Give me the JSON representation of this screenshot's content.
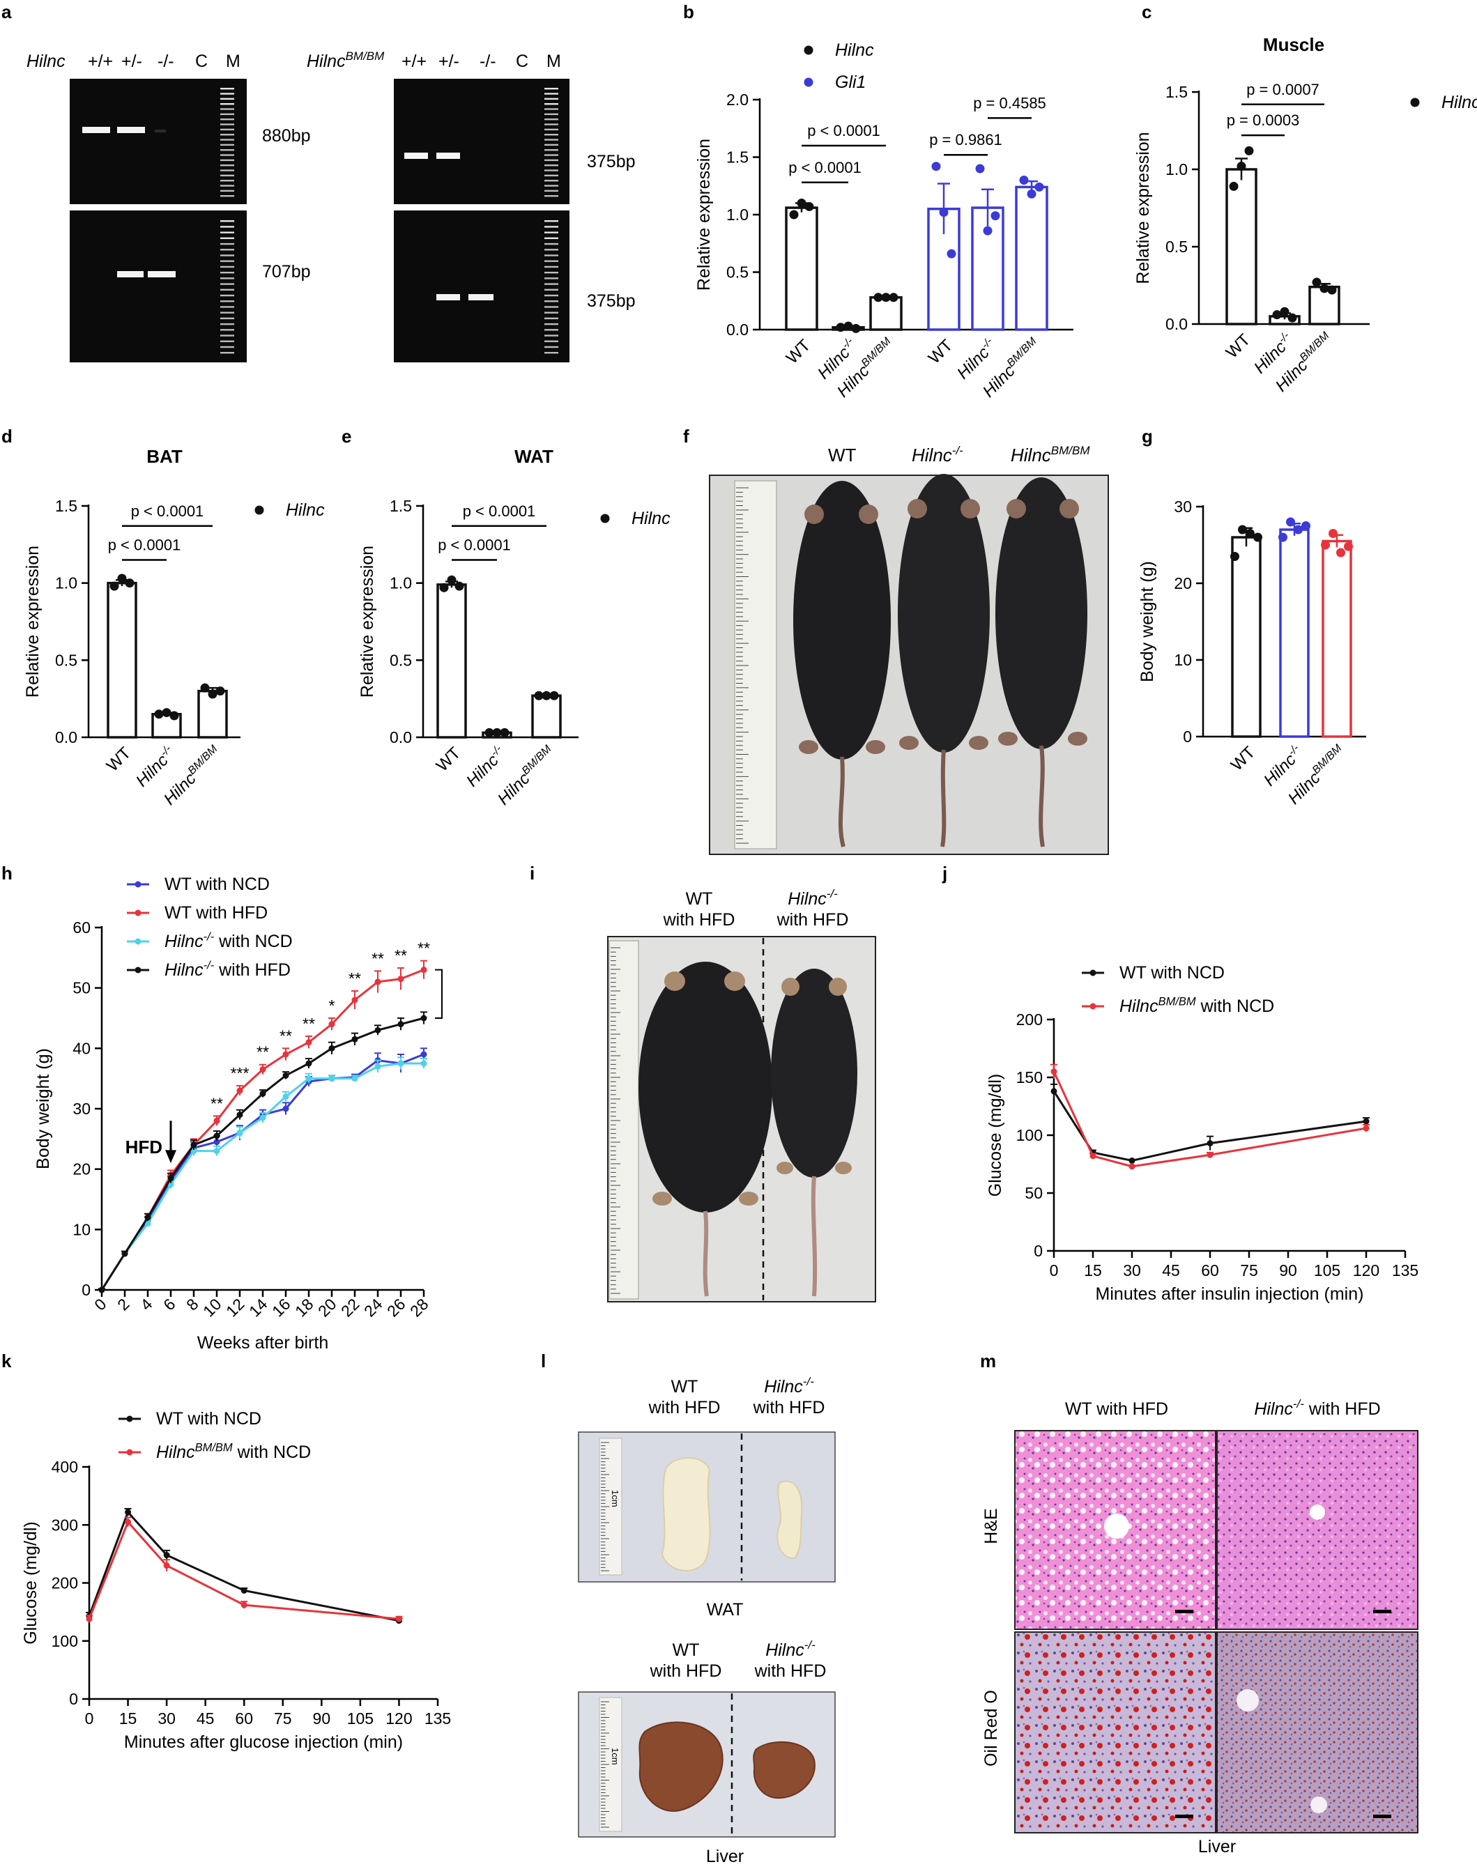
{
  "colors": {
    "black": "#111111",
    "red": "#e8333a",
    "blue": "#3b3bd8",
    "cyan": "#4fd2ea",
    "gel": "#0b0b0b",
    "band": "#f4f4f4"
  },
  "panels": {
    "a": "a",
    "b": "b",
    "c": "c",
    "d": "d",
    "e": "e",
    "f": "f",
    "g": "g",
    "h": "h",
    "i": "i",
    "j": "j",
    "k": "k",
    "l": "l",
    "m": "m"
  },
  "a": {
    "left_gene": "Hilnc",
    "right_gene_base": "Hilnc",
    "right_gene_sup": "BM/BM",
    "left_lanes": [
      "+/+",
      "+/-",
      "-/-",
      "C",
      "M"
    ],
    "right_lanes": [
      "+/+",
      "+/-",
      "-/-",
      "C",
      "M"
    ],
    "left_sizes": [
      "880bp",
      "707bp"
    ],
    "right_sizes": [
      "375bp",
      "375bp"
    ]
  },
  "f": {
    "labels": [
      "WT",
      "Hilnc",
      "Hilnc"
    ],
    "sups": [
      "",
      "-/-",
      "BM/BM"
    ]
  },
  "i": {
    "col1_l1": "WT",
    "col1_l2": "with HFD",
    "col2_base": "Hilnc",
    "col2_sup": "-/-",
    "col2_l2": "with HFD"
  },
  "l": {
    "col1_l1": "WT",
    "col1_l2": "with HFD",
    "col2_base": "Hilnc",
    "col2_sup": "-/-",
    "col2_l2": "with HFD",
    "wat_caption": "WAT",
    "liver_caption": "Liver",
    "ruler_label": "1cm"
  },
  "m": {
    "col1": "WT with HFD",
    "col2_base": "Hilnc",
    "col2_sup": "-/-",
    "col2_rest": " with HFD",
    "row1": "H&E",
    "row2": "Oil Red O",
    "caption": "Liver"
  },
  "chart_data": [
    {
      "id": "b",
      "type": "bar",
      "title": "",
      "ylabel": "Relative expression",
      "ylim": [
        0,
        2.0
      ],
      "yticks": [
        "0.0",
        "0.5",
        "1.0",
        "1.5",
        "2.0"
      ],
      "legend": [
        {
          "name": "Hilnc",
          "color": "#111111"
        },
        {
          "name": "Gli1",
          "color": "#3b3bd8"
        }
      ],
      "groups": [
        {
          "series": "Hilnc",
          "color": "#111111",
          "categories": [
            {
              "base": "WT",
              "sup": ""
            },
            {
              "base": "Hilnc",
              "sup": "-/-"
            },
            {
              "base": "Hilnc",
              "sup": "BM/BM"
            }
          ],
          "values": [
            1.06,
            0.02,
            0.28
          ],
          "errors": [
            0.04,
            0.01,
            0.01
          ],
          "points": [
            [
              1.0,
              1.1,
              1.07
            ],
            [
              0.02,
              0.03,
              0.01
            ],
            [
              0.28,
              0.28,
              0.28
            ]
          ]
        },
        {
          "series": "Gli1",
          "color": "#3b3bd8",
          "categories": [
            {
              "base": "WT",
              "sup": ""
            },
            {
              "base": "Hilnc",
              "sup": "-/-"
            },
            {
              "base": "Hilnc",
              "sup": "BM/BM"
            }
          ],
          "values": [
            1.05,
            1.06,
            1.24
          ],
          "errors": [
            0.22,
            0.16,
            0.05
          ],
          "points": [
            [
              1.42,
              1.02,
              0.66
            ],
            [
              1.4,
              0.86,
              0.99
            ],
            [
              1.3,
              1.18,
              1.24
            ]
          ]
        }
      ],
      "brackets": [
        {
          "from": 0,
          "to": 1,
          "label": "p < 0.0001",
          "y": 1.28
        },
        {
          "from": 0,
          "to": 2,
          "label": "p < 0.0001",
          "y": 1.6
        },
        {
          "from": 3,
          "to": 4,
          "label": "p = 0.9861",
          "y": 1.52
        },
        {
          "from": 4,
          "to": 5,
          "label": "p = 0.4585",
          "y": 1.84
        }
      ]
    },
    {
      "id": "c",
      "type": "bar",
      "title": "Muscle",
      "ylabel": "Relative expression",
      "ylim": [
        0,
        1.5
      ],
      "yticks": [
        "0.0",
        "0.5",
        "1.0",
        "1.5"
      ],
      "legend": [
        {
          "name": "Hilnc",
          "color": "#111111"
        }
      ],
      "groups": [
        {
          "series": "Hilnc",
          "color": "#111111",
          "categories": [
            {
              "base": "WT",
              "sup": ""
            },
            {
              "base": "Hilnc",
              "sup": "-/-"
            },
            {
              "base": "Hilnc",
              "sup": "BM/BM"
            }
          ],
          "values": [
            1.0,
            0.05,
            0.24
          ],
          "errors": [
            0.07,
            0.02,
            0.02
          ],
          "points": [
            [
              0.89,
              1.02,
              1.12
            ],
            [
              0.06,
              0.08,
              0.04
            ],
            [
              0.27,
              0.23,
              0.22
            ]
          ]
        }
      ],
      "brackets": [
        {
          "from": 0,
          "to": 1,
          "label": "p = 0.0003",
          "y": 1.22
        },
        {
          "from": 0,
          "to": 2,
          "label": "p = 0.0007",
          "y": 1.42
        }
      ]
    },
    {
      "id": "d",
      "type": "bar",
      "title": "BAT",
      "ylabel": "Relative expression",
      "ylim": [
        0,
        1.5
      ],
      "yticks": [
        "0.0",
        "0.5",
        "1.0",
        "1.5"
      ],
      "legend": [
        {
          "name": "Hilnc",
          "color": "#111111"
        }
      ],
      "groups": [
        {
          "series": "Hilnc",
          "color": "#111111",
          "categories": [
            {
              "base": "WT",
              "sup": ""
            },
            {
              "base": "Hilnc",
              "sup": "-/-"
            },
            {
              "base": "Hilnc",
              "sup": "BM/BM"
            }
          ],
          "values": [
            1.0,
            0.15,
            0.3
          ],
          "errors": [
            0.02,
            0.01,
            0.02
          ],
          "points": [
            [
              0.98,
              1.03,
              1.0
            ],
            [
              0.15,
              0.16,
              0.14
            ],
            [
              0.32,
              0.28,
              0.3
            ]
          ]
        }
      ],
      "brackets": [
        {
          "from": 0,
          "to": 1,
          "label": "p < 0.0001",
          "y": 1.15
        },
        {
          "from": 0,
          "to": 2,
          "label": "p < 0.0001",
          "y": 1.37
        }
      ]
    },
    {
      "id": "e",
      "type": "bar",
      "title": "WAT",
      "ylabel": "Relative expression",
      "ylim": [
        0,
        1.5
      ],
      "yticks": [
        "0.0",
        "0.5",
        "1.0",
        "1.5"
      ],
      "legend": [
        {
          "name": "Hilnc",
          "color": "#111111"
        }
      ],
      "groups": [
        {
          "series": "Hilnc",
          "color": "#111111",
          "categories": [
            {
              "base": "WT",
              "sup": ""
            },
            {
              "base": "Hilnc",
              "sup": "-/-"
            },
            {
              "base": "Hilnc",
              "sup": "BM/BM"
            }
          ],
          "values": [
            0.99,
            0.03,
            0.27
          ],
          "errors": [
            0.02,
            0.005,
            0.01
          ],
          "points": [
            [
              0.97,
              1.02,
              0.98
            ],
            [
              0.03,
              0.03,
              0.03
            ],
            [
              0.27,
              0.27,
              0.27
            ]
          ]
        }
      ],
      "brackets": [
        {
          "from": 0,
          "to": 1,
          "label": "p < 0.0001",
          "y": 1.15
        },
        {
          "from": 0,
          "to": 2,
          "label": "p < 0.0001",
          "y": 1.37
        }
      ]
    },
    {
      "id": "g",
      "type": "bar",
      "title": "",
      "ylabel": "Body weight (g)",
      "ylim": [
        0,
        30
      ],
      "yticks": [
        "0",
        "10",
        "20",
        "30"
      ],
      "legend": [],
      "groups": [
        {
          "series": "Body weight",
          "color": "#111111",
          "colors": [
            "#111111",
            "#3b3bd8",
            "#e8333a"
          ],
          "categories": [
            {
              "base": "WT",
              "sup": ""
            },
            {
              "base": "Hilnc",
              "sup": "-/-"
            },
            {
              "base": "Hilnc",
              "sup": "BM/BM"
            }
          ],
          "values": [
            26,
            27,
            25.5
          ],
          "errors": [
            1.2,
            0.8,
            0.8
          ],
          "points": [
            [
              23.5,
              27,
              26.5,
              26
            ],
            [
              26,
              28,
              27,
              27.5
            ],
            [
              25,
              26.5,
              24,
              24.8
            ]
          ]
        }
      ],
      "brackets": []
    },
    {
      "id": "h",
      "type": "line",
      "xlabel": "Weeks after birth",
      "ylabel": "Body weight (g)",
      "xlim": [
        0,
        28
      ],
      "ylim": [
        0,
        60
      ],
      "x": [
        0,
        2,
        4,
        6,
        8,
        10,
        12,
        14,
        16,
        18,
        20,
        22,
        24,
        26,
        28
      ],
      "xticks": [
        "0",
        "2",
        "4",
        "6",
        "8",
        "10",
        "12",
        "14",
        "16",
        "18",
        "20",
        "22",
        "24",
        "26",
        "28"
      ],
      "yticks": [
        "0",
        "10",
        "20",
        "30",
        "40",
        "50",
        "60"
      ],
      "series": [
        {
          "name": "WT with NCD",
          "base": "WT with NCD",
          "sup": "",
          "rest": "",
          "color": "#3b3bd8",
          "values": [
            0,
            6,
            11.5,
            18,
            23.5,
            24.5,
            26,
            29,
            30,
            34.5,
            35,
            35.2,
            38,
            37.5,
            39
          ],
          "errors": [
            0.2,
            0.4,
            0.6,
            0.8,
            1,
            1,
            1.2,
            0.8,
            1,
            0.8,
            0.5,
            0.5,
            1.2,
            1.5,
            1
          ]
        },
        {
          "name": "WT with HFD",
          "base": "WT with HFD",
          "sup": "",
          "rest": "",
          "color": "#e8333a",
          "values": [
            0,
            6,
            12,
            19,
            24,
            28,
            33,
            36.5,
            39,
            41,
            44,
            48,
            51,
            51.5,
            53
          ],
          "errors": [
            0.2,
            0.4,
            0.6,
            0.8,
            1,
            0.8,
            0.8,
            0.8,
            1,
            1,
            1,
            1.5,
            1.8,
            1.8,
            1.5
          ]
        },
        {
          "name": "Hilnc-/- with NCD",
          "base": "Hilnc",
          "sup": "-/-",
          "rest": " with NCD",
          "color": "#4fd2ea",
          "values": [
            0,
            6,
            11,
            17.5,
            23,
            23,
            26,
            28.5,
            32,
            35,
            35,
            35,
            37,
            37.5,
            37.5
          ],
          "errors": [
            0.2,
            0.4,
            0.5,
            0.7,
            0.8,
            0.8,
            1,
            0.8,
            0.8,
            0.8,
            0.5,
            0.5,
            1,
            1,
            0.8
          ]
        },
        {
          "name": "Hilnc-/- with HFD",
          "base": "Hilnc",
          "sup": "-/-",
          "rest": " with HFD",
          "color": "#111111",
          "values": [
            0,
            6,
            12,
            18.5,
            24,
            25.5,
            29,
            32.5,
            35.5,
            37.5,
            40,
            41.5,
            43,
            44,
            45
          ],
          "errors": [
            0.2,
            0.4,
            0.6,
            0.8,
            0.8,
            0.8,
            0.8,
            0.6,
            0.6,
            0.8,
            1,
            1,
            0.8,
            1,
            1
          ]
        }
      ],
      "stars": [
        {
          "x": 10,
          "label": "**"
        },
        {
          "x": 12,
          "label": "***"
        },
        {
          "x": 14,
          "label": "**"
        },
        {
          "x": 16,
          "label": "**"
        },
        {
          "x": 18,
          "label": "**"
        },
        {
          "x": 20,
          "label": "*"
        },
        {
          "x": 22,
          "label": "**"
        },
        {
          "x": 24,
          "label": "**"
        },
        {
          "x": 26,
          "label": "**"
        },
        {
          "x": 28,
          "label": "**"
        }
      ],
      "annotation": {
        "text": "HFD",
        "x": 6
      }
    },
    {
      "id": "j",
      "type": "line",
      "xlabel": "Minutes after insulin injection (min)",
      "ylabel": "Glucose (mg/dl)",
      "xlim": [
        0,
        135
      ],
      "ylim": [
        0,
        200
      ],
      "xticks": [
        "0",
        "15",
        "30",
        "45",
        "60",
        "75",
        "90",
        "105",
        "120",
        "135"
      ],
      "yticks": [
        "0",
        "50",
        "100",
        "150",
        "200"
      ],
      "series": [
        {
          "name": "WT with NCD",
          "base": "WT with NCD",
          "sup": "",
          "rest": "",
          "color": "#111111",
          "x": [
            0,
            15,
            30,
            60,
            120
          ],
          "values": [
            138,
            85,
            78,
            93,
            112
          ],
          "errors": [
            6,
            2,
            1,
            6,
            3
          ]
        },
        {
          "name": "HilncBM/BM with NCD",
          "base": "Hilnc",
          "sup": "BM/BM",
          "rest": " with NCD",
          "color": "#e8333a",
          "x": [
            0,
            15,
            30,
            60,
            120
          ],
          "values": [
            155,
            82,
            73,
            83,
            106
          ],
          "errors": [
            6,
            2,
            1,
            2,
            3
          ]
        }
      ]
    },
    {
      "id": "k",
      "type": "line",
      "xlabel": "Minutes after glucose injection (min)",
      "ylabel": "Glucose (mg/dl)",
      "xlim": [
        0,
        135
      ],
      "ylim": [
        0,
        400
      ],
      "xticks": [
        "0",
        "15",
        "30",
        "45",
        "60",
        "75",
        "90",
        "105",
        "120",
        "135"
      ],
      "yticks": [
        "0",
        "100",
        "200",
        "300",
        "400"
      ],
      "series": [
        {
          "name": "WT with NCD",
          "base": "WT with NCD",
          "sup": "",
          "rest": "",
          "color": "#111111",
          "x": [
            0,
            15,
            30,
            60,
            120
          ],
          "values": [
            143,
            322,
            248,
            187,
            135
          ],
          "errors": [
            6,
            6,
            8,
            4,
            4
          ]
        },
        {
          "name": "HilncBM/BM with NCD",
          "base": "Hilnc",
          "sup": "BM/BM",
          "rest": " with NCD",
          "color": "#e8333a",
          "x": [
            0,
            15,
            30,
            60,
            120
          ],
          "values": [
            138,
            305,
            230,
            162,
            138
          ],
          "errors": [
            6,
            8,
            10,
            6,
            4
          ]
        }
      ]
    }
  ]
}
